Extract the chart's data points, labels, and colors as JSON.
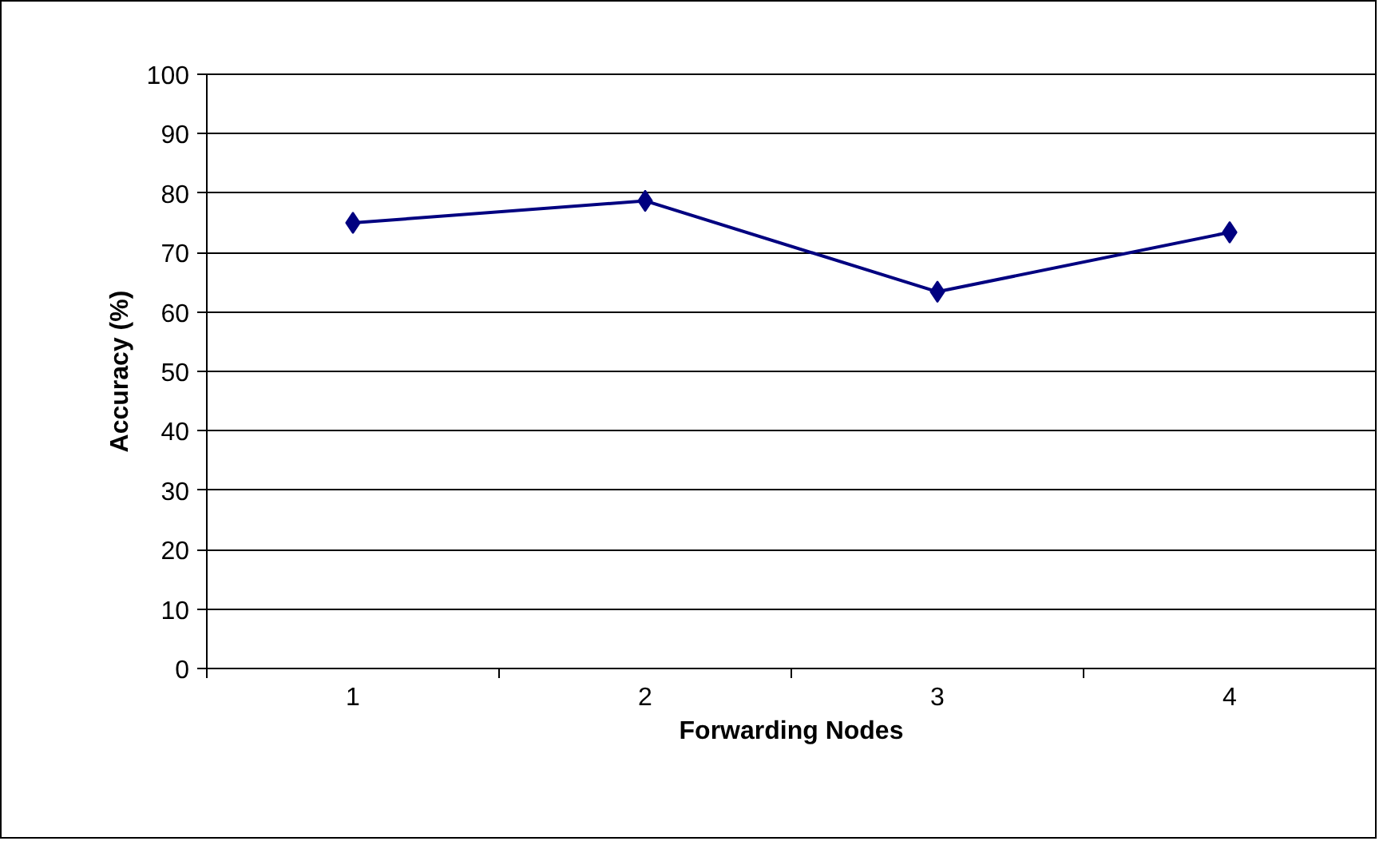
{
  "chart_data": {
    "type": "line",
    "xlabel": "Forwarding Nodes",
    "ylabel": "Accuracy (%)",
    "categories": [
      "1",
      "2",
      "3",
      "4"
    ],
    "series": [
      {
        "color": "#000080",
        "values": [
          75,
          78.7,
          63.4,
          73.4
        ]
      }
    ],
    "ylim": [
      0,
      100
    ],
    "yticks": [
      0,
      10,
      20,
      30,
      40,
      50,
      60,
      70,
      80,
      90,
      100
    ],
    "grid": "y",
    "marker": "diamond",
    "line_style": "solid"
  }
}
